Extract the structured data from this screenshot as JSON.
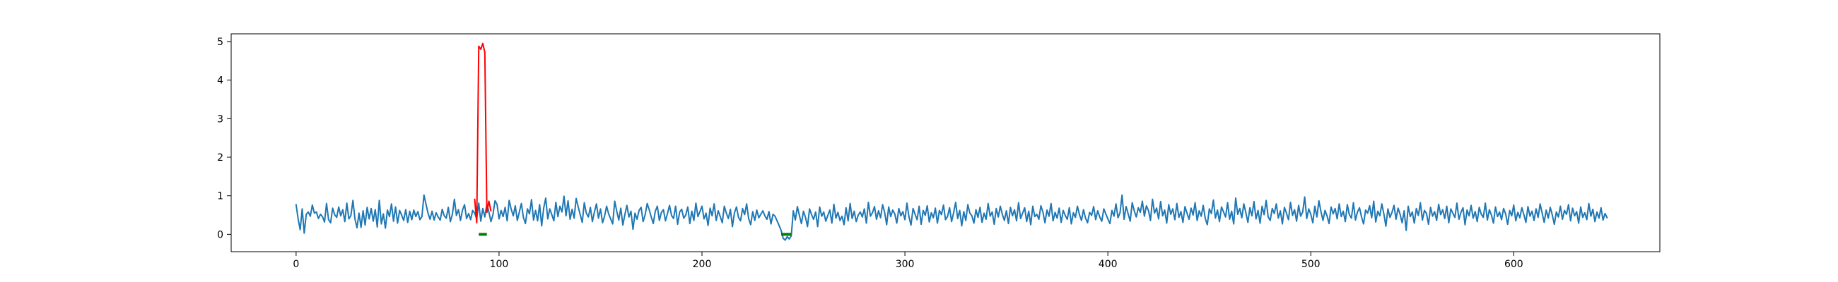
{
  "chart_data": {
    "type": "line",
    "title": "",
    "xlabel": "",
    "ylabel": "",
    "xlim": [
      -32,
      672
    ],
    "ylim": [
      -0.45,
      5.2
    ],
    "x_ticks": [
      0,
      100,
      200,
      300,
      400,
      500,
      600
    ],
    "y_ticks": [
      0,
      1,
      2,
      3,
      4,
      5
    ],
    "grid": false,
    "legend": "none",
    "series": [
      {
        "role": "signal",
        "color": "#1f77b4",
        "x_start": 0,
        "x_step": 1,
        "values": [
          0.77,
          0.4,
          0.12,
          0.66,
          0.03,
          0.52,
          0.58,
          0.47,
          0.76,
          0.55,
          0.58,
          0.41,
          0.52,
          0.46,
          0.32,
          0.8,
          0.38,
          0.3,
          0.68,
          0.51,
          0.44,
          0.71,
          0.48,
          0.64,
          0.33,
          0.81,
          0.4,
          0.49,
          0.88,
          0.4,
          0.17,
          0.55,
          0.18,
          0.61,
          0.24,
          0.7,
          0.4,
          0.67,
          0.34,
          0.64,
          0.19,
          0.88,
          0.27,
          0.53,
          0.16,
          0.63,
          0.46,
          0.79,
          0.34,
          0.71,
          0.29,
          0.62,
          0.5,
          0.36,
          0.64,
          0.31,
          0.6,
          0.38,
          0.63,
          0.46,
          0.59,
          0.38,
          0.46,
          1.02,
          0.78,
          0.55,
          0.39,
          0.6,
          0.37,
          0.56,
          0.45,
          0.37,
          0.65,
          0.48,
          0.42,
          0.7,
          0.33,
          0.52,
          0.91,
          0.49,
          0.64,
          0.36,
          0.63,
          0.77,
          0.41,
          0.54,
          0.38,
          0.62,
          0.55,
          0.4,
          0.81,
          0.34,
          0.67,
          0.45,
          0.79,
          0.58,
          0.33,
          0.51,
          0.87,
          0.78,
          0.4,
          0.62,
          0.46,
          0.7,
          0.35,
          0.88,
          0.65,
          0.48,
          0.74,
          0.36,
          0.58,
          0.8,
          0.44,
          0.28,
          0.66,
          0.53,
          0.9,
          0.37,
          0.62,
          0.35,
          0.77,
          0.22,
          0.68,
          0.94,
          0.4,
          0.66,
          0.51,
          0.35,
          0.83,
          0.46,
          0.73,
          0.58,
          0.99,
          0.48,
          0.87,
          0.39,
          0.65,
          0.42,
          0.93,
          0.71,
          0.51,
          0.31,
          0.82,
          0.55,
          0.45,
          0.7,
          0.33,
          0.58,
          0.79,
          0.42,
          0.66,
          0.3,
          0.47,
          0.73,
          0.53,
          0.4,
          0.27,
          0.86,
          0.6,
          0.37,
          0.68,
          0.24,
          0.51,
          0.75,
          0.45,
          0.6,
          0.13,
          0.55,
          0.39,
          0.62,
          0.7,
          0.33,
          0.51,
          0.8,
          0.64,
          0.45,
          0.28,
          0.6,
          0.73,
          0.36,
          0.57,
          0.64,
          0.35,
          0.54,
          0.75,
          0.49,
          0.41,
          0.73,
          0.26,
          0.58,
          0.65,
          0.42,
          0.5,
          0.71,
          0.28,
          0.6,
          0.36,
          0.81,
          0.46,
          0.59,
          0.73,
          0.4,
          0.55,
          0.23,
          0.68,
          0.48,
          0.79,
          0.36,
          0.61,
          0.46,
          0.3,
          0.73,
          0.55,
          0.41,
          0.65,
          0.2,
          0.56,
          0.71,
          0.44,
          0.35,
          0.67,
          0.51,
          0.79,
          0.41,
          0.25,
          0.59,
          0.36,
          0.63,
          0.43,
          0.52,
          0.61,
          0.48,
          0.39,
          0.59,
          0.27,
          0.52,
          0.47,
          0.35,
          0.23,
          0.1,
          -0.1,
          -0.15,
          -0.06,
          -0.12,
          -0.04,
          0.61,
          0.37,
          0.72,
          0.49,
          0.28,
          0.6,
          0.44,
          0.2,
          0.66,
          0.51,
          0.39,
          0.58,
          0.2,
          0.71,
          0.47,
          0.58,
          0.34,
          0.49,
          0.63,
          0.29,
          0.78,
          0.42,
          0.57,
          0.36,
          0.47,
          0.25,
          0.69,
          0.35,
          0.8,
          0.41,
          0.6,
          0.33,
          0.5,
          0.58,
          0.45,
          0.66,
          0.29,
          0.83,
          0.47,
          0.56,
          0.72,
          0.39,
          0.61,
          0.43,
          0.77,
          0.57,
          0.25,
          0.71,
          0.46,
          0.63,
          0.53,
          0.29,
          0.67,
          0.48,
          0.59,
          0.38,
          0.81,
          0.45,
          0.24,
          0.67,
          0.52,
          0.38,
          0.73,
          0.26,
          0.62,
          0.49,
          0.74,
          0.32,
          0.56,
          0.43,
          0.68,
          0.29,
          0.62,
          0.51,
          0.76,
          0.38,
          0.46,
          0.69,
          0.33,
          0.56,
          0.83,
          0.41,
          0.62,
          0.22,
          0.59,
          0.36,
          0.77,
          0.55,
          0.48,
          0.29,
          0.64,
          0.44,
          0.7,
          0.31,
          0.55,
          0.39,
          0.8,
          0.47,
          0.58,
          0.26,
          0.67,
          0.45,
          0.73,
          0.52,
          0.36,
          0.61,
          0.28,
          0.7,
          0.48,
          0.64,
          0.35,
          0.82,
          0.41,
          0.55,
          0.69,
          0.33,
          0.6,
          0.25,
          0.73,
          0.46,
          0.52,
          0.39,
          0.74,
          0.58,
          0.3,
          0.63,
          0.47,
          0.8,
          0.35,
          0.57,
          0.42,
          0.68,
          0.31,
          0.62,
          0.49,
          0.39,
          0.69,
          0.27,
          0.56,
          0.44,
          0.73,
          0.51,
          0.36,
          0.64,
          0.42,
          0.3,
          0.57,
          0.49,
          0.72,
          0.38,
          0.61,
          0.45,
          0.34,
          0.66,
          0.53,
          0.4,
          0.28,
          0.62,
          0.47,
          0.79,
          0.43,
          0.56,
          1.02,
          0.39,
          0.72,
          0.53,
          0.34,
          0.82,
          0.61,
          0.45,
          0.69,
          0.57,
          0.86,
          0.47,
          0.74,
          0.62,
          0.36,
          0.91,
          0.55,
          0.68,
          0.4,
          0.85,
          0.48,
          0.63,
          0.29,
          0.77,
          0.52,
          0.66,
          0.38,
          0.8,
          0.44,
          0.59,
          0.31,
          0.72,
          0.55,
          0.39,
          0.68,
          0.5,
          0.82,
          0.36,
          0.61,
          0.47,
          0.75,
          0.41,
          0.25,
          0.66,
          0.54,
          0.89,
          0.42,
          0.63,
          0.33,
          0.71,
          0.58,
          0.45,
          0.82,
          0.39,
          0.6,
          0.27,
          0.94,
          0.52,
          0.67,
          0.43,
          0.79,
          0.56,
          0.31,
          0.69,
          0.48,
          0.85,
          0.4,
          0.62,
          0.29,
          0.73,
          0.51,
          0.88,
          0.45,
          0.36,
          0.67,
          0.54,
          0.79,
          0.42,
          0.61,
          0.27,
          0.7,
          0.55,
          0.38,
          0.83,
          0.49,
          0.64,
          0.34,
          0.75,
          0.47,
          0.58,
          0.97,
          0.41,
          0.66,
          0.52,
          0.3,
          0.73,
          0.45,
          0.87,
          0.59,
          0.36,
          0.62,
          0.48,
          0.28,
          0.71,
          0.53,
          0.67,
          0.4,
          0.79,
          0.46,
          0.6,
          0.33,
          0.77,
          0.51,
          0.42,
          0.82,
          0.37,
          0.58,
          0.69,
          0.45,
          0.27,
          0.63,
          0.55,
          0.74,
          0.43,
          0.86,
          0.32,
          0.6,
          0.48,
          0.79,
          0.53,
          0.21,
          0.66,
          0.44,
          0.57,
          0.75,
          0.39,
          0.68,
          0.52,
          0.3,
          0.61,
          0.1,
          0.73,
          0.46,
          0.58,
          0.29,
          0.67,
          0.49,
          0.82,
          0.37,
          0.62,
          0.54,
          0.26,
          0.7,
          0.47,
          0.59,
          0.36,
          0.78,
          0.51,
          0.64,
          0.41,
          0.73,
          0.3,
          0.66,
          0.55,
          0.44,
          0.81,
          0.39,
          0.57,
          0.69,
          0.25,
          0.63,
          0.48,
          0.75,
          0.42,
          0.59,
          0.33,
          0.7,
          0.52,
          0.44,
          0.81,
          0.37,
          0.64,
          0.5,
          0.29,
          0.71,
          0.46,
          0.58,
          0.38,
          0.67,
          0.53,
          0.26,
          0.62,
          0.48,
          0.76,
          0.35,
          0.57,
          0.43,
          0.69,
          0.51,
          0.31,
          0.72,
          0.47,
          0.6,
          0.36,
          0.66,
          0.44,
          0.79,
          0.55,
          0.31,
          0.63,
          0.42,
          0.7,
          0.5,
          0.26,
          0.58,
          0.45,
          0.73,
          0.39,
          0.62,
          0.52,
          0.77,
          0.35,
          0.68,
          0.48,
          0.59,
          0.29,
          0.71,
          0.44,
          0.56,
          0.38,
          0.8,
          0.47,
          0.65,
          0.33,
          0.58,
          0.42,
          0.69,
          0.37,
          0.54,
          0.43
        ]
      },
      {
        "role": "highlight-high",
        "color": "#ff0000",
        "x": [
          88,
          89,
          90,
          91,
          92,
          93,
          94,
          95,
          96
        ],
        "values": [
          0.91,
          0.3,
          4.88,
          4.8,
          4.95,
          4.72,
          0.57,
          0.86,
          0.61
        ]
      },
      {
        "role": "highlight-low",
        "color": "#008000",
        "x": [
          90,
          91,
          92,
          93,
          94
        ],
        "values": [
          0.0,
          0.0,
          0.0,
          0.0,
          0.0
        ]
      },
      {
        "role": "highlight-low",
        "color": "#008000",
        "x": [
          239,
          240,
          241,
          242,
          243,
          244
        ],
        "values": [
          0.0,
          0.0,
          0.0,
          0.0,
          0.0,
          0.0
        ]
      }
    ]
  }
}
